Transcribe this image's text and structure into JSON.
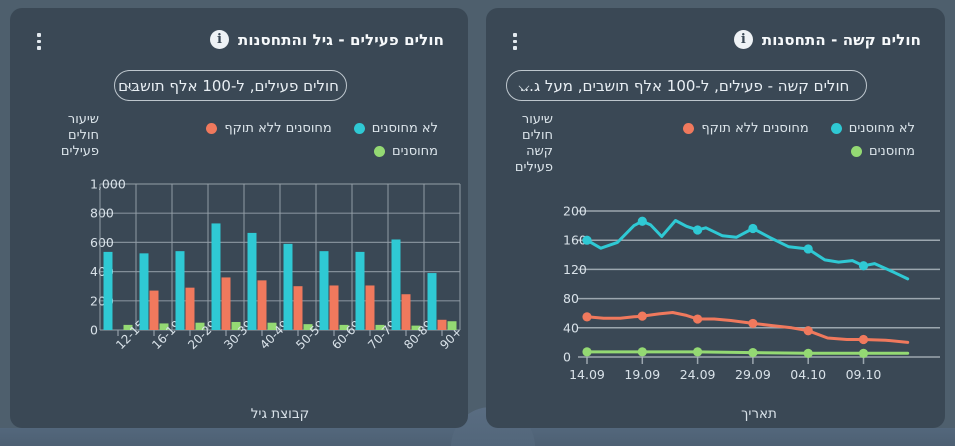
{
  "colors": {
    "page_bg": "#4e5f6d",
    "panel_bg": "#3a4855",
    "not_vaccinated_cyan": "#2fc9d4",
    "expired_orange": "#f0795d",
    "vaccinated_green": "#94d973",
    "grid": "#a8b2ba",
    "text": "#dce5eb",
    "title": "#f6f9fb"
  },
  "icons": {
    "kebab": "vertical-ellipsis",
    "info": "i",
    "dropdown_chevron": "chevron-down"
  },
  "panels": {
    "left": {
      "title": "חולים פעילים - גיל והתחסנות",
      "dropdown_value": "חולים פעילים, ל-100 אלף תושבים"
    },
    "right": {
      "title": "חולים קשה - התחסנות",
      "dropdown_value": "חולים קשה - פעילים, ל-100 אלף תושבים, מעל ג..."
    }
  },
  "legend": {
    "columns": [
      [
        {
          "label": "לא מחוסנים",
          "color": "#2fc9d4"
        },
        {
          "label": "מחוסנים",
          "color": "#94d973"
        }
      ],
      [
        {
          "label": "מחוסנים ללא תוקף",
          "color": "#f0795d"
        }
      ]
    ]
  },
  "chart_data": [
    {
      "type": "bar",
      "title": "חולים פעילים - גיל והתחסנות",
      "categories": [
        "12-15",
        "16-19",
        "20-29",
        "30-39",
        "40-49",
        "50-59",
        "60-69",
        "70-79",
        "80-89",
        "+90"
      ],
      "series": [
        {
          "name": "לא מחוסנים",
          "color": "#2fc9d4",
          "values": [
            535,
            525,
            540,
            730,
            665,
            590,
            540,
            535,
            620,
            390
          ]
        },
        {
          "name": "מחוסנים ללא תוקף",
          "color": "#f0795d",
          "values": [
            0,
            270,
            290,
            360,
            340,
            300,
            305,
            305,
            245,
            70
          ]
        },
        {
          "name": "מחוסנים",
          "color": "#94d973",
          "values": [
            35,
            45,
            50,
            55,
            50,
            40,
            35,
            35,
            30,
            60
          ]
        }
      ],
      "xlabel": "קבוצת גיל",
      "ylabel": "שיעור חולים פעילים",
      "ylabel_lines": [
        "שיעור",
        "חולים",
        "פעילים"
      ],
      "ylim": [
        0,
        1000
      ],
      "yticks": [
        "0",
        "200",
        "400",
        "600",
        "800",
        "1,000"
      ],
      "grid": "full-box",
      "legend_position": "top-right"
    },
    {
      "type": "line",
      "title": "חולים קשה - התחסנות",
      "x_ticks": [
        "14.09",
        "19.09",
        "24.09",
        "29.09",
        "04.10",
        "09.10"
      ],
      "series": [
        {
          "name": "לא מחוסנים",
          "color": "#2fc9d4",
          "markers": [
            [
              0,
              160
            ],
            [
              1,
              186
            ],
            [
              2,
              174
            ],
            [
              3,
              176
            ],
            [
              4,
              148
            ],
            [
              5,
              125
            ]
          ],
          "points": [
            [
              0,
              160
            ],
            [
              0.25,
              149
            ],
            [
              0.55,
              157
            ],
            [
              0.85,
              180
            ],
            [
              1,
              186
            ],
            [
              1.15,
              181
            ],
            [
              1.35,
              165
            ],
            [
              1.6,
              187
            ],
            [
              1.8,
              179
            ],
            [
              2,
              174
            ],
            [
              2.15,
              177
            ],
            [
              2.45,
              166
            ],
            [
              2.7,
              164
            ],
            [
              3,
              176
            ],
            [
              3.3,
              164
            ],
            [
              3.65,
              151
            ],
            [
              4,
              148
            ],
            [
              4.3,
              133
            ],
            [
              4.55,
              130
            ],
            [
              4.8,
              132
            ],
            [
              5,
              125
            ],
            [
              5.2,
              128
            ],
            [
              5.55,
              116
            ],
            [
              5.8,
              107
            ]
          ]
        },
        {
          "name": "מחוסנים ללא תוקף",
          "color": "#f0795d",
          "markers": [
            [
              0,
              55
            ],
            [
              1,
              56
            ],
            [
              2,
              52
            ],
            [
              3,
              46
            ],
            [
              4,
              36
            ],
            [
              5,
              24
            ]
          ],
          "points": [
            [
              0,
              55
            ],
            [
              0.3,
              53
            ],
            [
              0.6,
              53
            ],
            [
              0.85,
              55
            ],
            [
              1,
              56
            ],
            [
              1.3,
              59
            ],
            [
              1.55,
              61
            ],
            [
              1.8,
              57
            ],
            [
              2,
              52
            ],
            [
              2.3,
              52
            ],
            [
              2.6,
              50
            ],
            [
              3,
              46
            ],
            [
              3.35,
              43
            ],
            [
              3.7,
              40
            ],
            [
              4,
              36
            ],
            [
              4.35,
              26
            ],
            [
              4.7,
              24
            ],
            [
              5,
              24
            ],
            [
              5.4,
              23
            ],
            [
              5.8,
              20
            ]
          ]
        },
        {
          "name": "מחוסנים",
          "color": "#94d973",
          "markers": [
            [
              0,
              7
            ],
            [
              1,
              7
            ],
            [
              2,
              7
            ],
            [
              3,
              6
            ],
            [
              4,
              5
            ],
            [
              5,
              5
            ]
          ],
          "points": [
            [
              0,
              7
            ],
            [
              1,
              7
            ],
            [
              2,
              7
            ],
            [
              3,
              6
            ],
            [
              4,
              5
            ],
            [
              5,
              5
            ],
            [
              5.8,
              5
            ]
          ]
        }
      ],
      "xlabel": "תאריך",
      "ylabel": "שיעור חולים קשה פעילים",
      "ylabel_lines": [
        "שיעור",
        "חולים",
        "קשה",
        "פעילים"
      ],
      "ylim": [
        0,
        200
      ],
      "yticks": [
        "0",
        "40",
        "80",
        "120",
        "160",
        "200"
      ],
      "grid": "horizontal",
      "legend_position": "top-right"
    }
  ]
}
